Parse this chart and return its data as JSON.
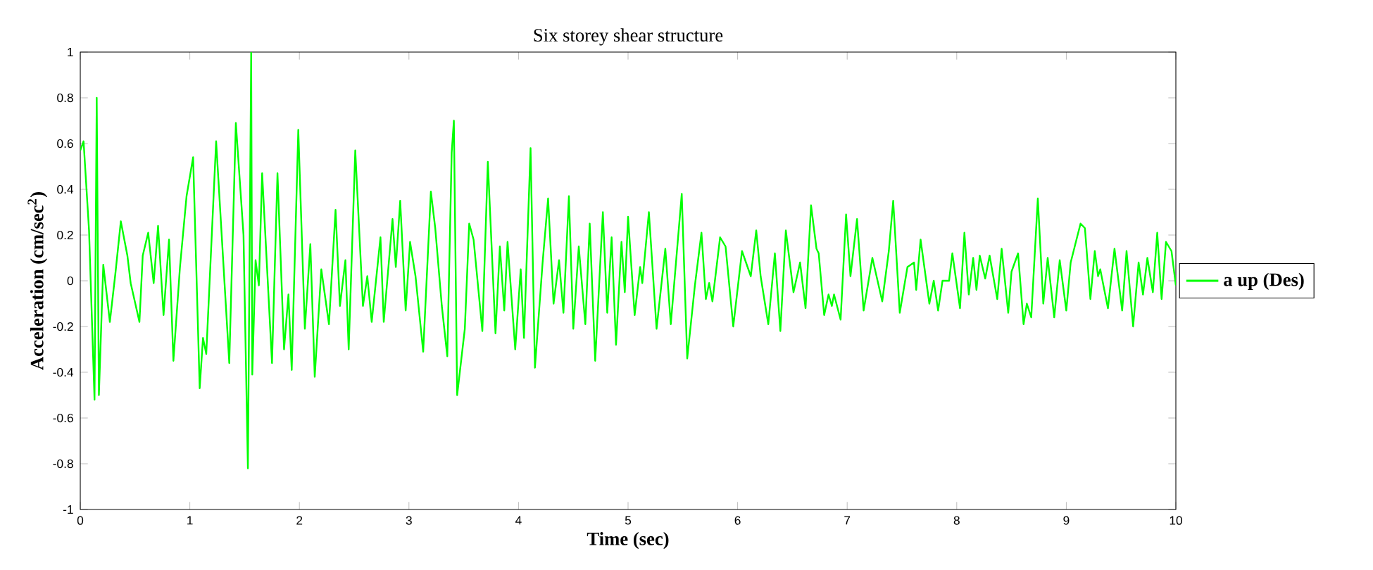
{
  "chart_data": {
    "type": "line",
    "title": "Six storey shear structure",
    "xlabel": "Time (sec)",
    "ylabel": "Acceleration (cm/sec$^{2}$)",
    "xlim": [
      0,
      10
    ],
    "ylim": [
      -1,
      1
    ],
    "xticks": [
      0,
      1,
      2,
      3,
      4,
      5,
      6,
      7,
      8,
      9,
      10
    ],
    "yticks": [
      -1,
      -0.8,
      -0.6,
      -0.4,
      -0.2,
      0,
      0.2,
      0.4,
      0.6,
      0.8,
      1
    ],
    "legend": "right",
    "marker": "none",
    "line_style": "solid",
    "grid": false,
    "series": [
      {
        "name": "a up (Des)",
        "color": "#00ff00",
        "x": [
          0,
          0.03,
          0.08,
          0.13,
          0.15,
          0.17,
          0.21,
          0.27,
          0.32,
          0.37,
          0.43,
          0.46,
          0.54,
          0.57,
          0.62,
          0.67,
          0.71,
          0.76,
          0.81,
          0.85,
          0.91,
          0.97,
          1.03,
          1.09,
          1.12,
          1.15,
          1.24,
          1.36,
          1.42,
          1.49,
          1.53,
          1.56,
          1.57,
          1.6,
          1.63,
          1.66,
          1.75,
          1.8,
          1.86,
          1.9,
          1.93,
          1.99,
          2.05,
          2.1,
          2.14,
          2.2,
          2.27,
          2.33,
          2.37,
          2.42,
          2.45,
          2.51,
          2.58,
          2.62,
          2.66,
          2.74,
          2.77,
          2.85,
          2.88,
          2.92,
          2.97,
          3.01,
          3.06,
          3.13,
          3.2,
          3.24,
          3.3,
          3.35,
          3.39,
          3.41,
          3.44,
          3.51,
          3.55,
          3.59,
          3.67,
          3.72,
          3.79,
          3.83,
          3.87,
          3.9,
          3.97,
          4.02,
          4.05,
          4.11,
          4.15,
          4.22,
          4.27,
          4.32,
          4.37,
          4.41,
          4.46,
          4.5,
          4.55,
          4.61,
          4.65,
          4.7,
          4.77,
          4.81,
          4.85,
          4.89,
          4.94,
          4.97,
          5.0,
          5.06,
          5.11,
          5.13,
          5.19,
          5.26,
          5.34,
          5.39,
          5.49,
          5.54,
          5.61,
          5.67,
          5.71,
          5.74,
          5.77,
          5.84,
          5.89,
          5.96,
          6.04,
          6.12,
          6.17,
          6.21,
          6.28,
          6.34,
          6.39,
          6.44,
          6.51,
          6.57,
          6.62,
          6.67,
          6.72,
          6.74,
          6.79,
          6.83,
          6.86,
          6.88,
          6.94,
          6.99,
          7.03,
          7.09,
          7.15,
          7.23,
          7.32,
          7.38,
          7.42,
          7.48,
          7.55,
          7.61,
          7.63,
          7.67,
          7.75,
          7.79,
          7.83,
          7.87,
          7.93,
          7.96,
          8.03,
          8.07,
          8.11,
          8.15,
          8.18,
          8.21,
          8.26,
          8.3,
          8.37,
          8.41,
          8.47,
          8.5,
          8.56,
          8.61,
          8.64,
          8.68,
          8.74,
          8.79,
          8.83,
          8.89,
          8.94,
          9.0,
          9.04,
          9.13,
          9.17,
          9.22,
          9.26,
          9.29,
          9.31,
          9.38,
          9.44,
          9.51,
          9.55,
          9.61,
          9.66,
          9.7,
          9.74,
          9.79,
          9.83,
          9.87,
          9.91,
          9.96,
          10.0
        ],
        "values": [
          0.57,
          0.61,
          0.22,
          -0.52,
          0.8,
          -0.5,
          0.07,
          -0.18,
          0.03,
          0.26,
          0.11,
          -0.01,
          -0.18,
          0.11,
          0.21,
          -0.01,
          0.24,
          -0.15,
          0.18,
          -0.35,
          0.06,
          0.37,
          0.54,
          -0.47,
          -0.25,
          -0.32,
          0.61,
          -0.36,
          0.69,
          0.2,
          -0.82,
          1.0,
          -0.41,
          0.09,
          -0.02,
          0.47,
          -0.36,
          0.47,
          -0.3,
          -0.06,
          -0.39,
          0.66,
          -0.21,
          0.16,
          -0.42,
          0.05,
          -0.19,
          0.31,
          -0.11,
          0.09,
          -0.3,
          0.57,
          -0.11,
          0.02,
          -0.18,
          0.19,
          -0.18,
          0.27,
          0.06,
          0.35,
          -0.13,
          0.17,
          0.02,
          -0.31,
          0.39,
          0.23,
          -0.11,
          -0.33,
          0.56,
          0.7,
          -0.5,
          -0.21,
          0.25,
          0.18,
          -0.22,
          0.52,
          -0.23,
          0.15,
          -0.13,
          0.17,
          -0.3,
          0.05,
          -0.25,
          0.58,
          -0.38,
          0.08,
          0.36,
          -0.1,
          0.09,
          -0.14,
          0.37,
          -0.21,
          0.15,
          -0.19,
          0.25,
          -0.35,
          0.3,
          -0.14,
          0.19,
          -0.28,
          0.17,
          -0.05,
          0.28,
          -0.15,
          0.06,
          -0.01,
          0.3,
          -0.21,
          0.14,
          -0.19,
          0.38,
          -0.34,
          -0.02,
          0.21,
          -0.08,
          -0.01,
          -0.09,
          0.19,
          0.15,
          -0.2,
          0.13,
          0.02,
          0.22,
          0.02,
          -0.19,
          0.12,
          -0.22,
          0.22,
          -0.05,
          0.08,
          -0.12,
          0.33,
          0.14,
          0.12,
          -0.15,
          -0.06,
          -0.11,
          -0.06,
          -0.17,
          0.29,
          0.02,
          0.27,
          -0.13,
          0.1,
          -0.09,
          0.13,
          0.35,
          -0.14,
          0.06,
          0.08,
          -0.04,
          0.18,
          -0.1,
          0.0,
          -0.13,
          0.0,
          0.0,
          0.12,
          -0.12,
          0.21,
          -0.06,
          0.1,
          -0.04,
          0.11,
          0.01,
          0.11,
          -0.08,
          0.14,
          -0.14,
          0.04,
          0.12,
          -0.19,
          -0.1,
          -0.16,
          0.36,
          -0.1,
          0.1,
          -0.16,
          0.09,
          -0.13,
          0.08,
          0.25,
          0.23,
          -0.08,
          0.13,
          0.02,
          0.05,
          -0.12,
          0.14,
          -0.13,
          0.13,
          -0.2,
          0.08,
          -0.06,
          0.1,
          -0.05,
          0.21,
          -0.08,
          0.17,
          0.13,
          -0.02
        ]
      }
    ]
  }
}
